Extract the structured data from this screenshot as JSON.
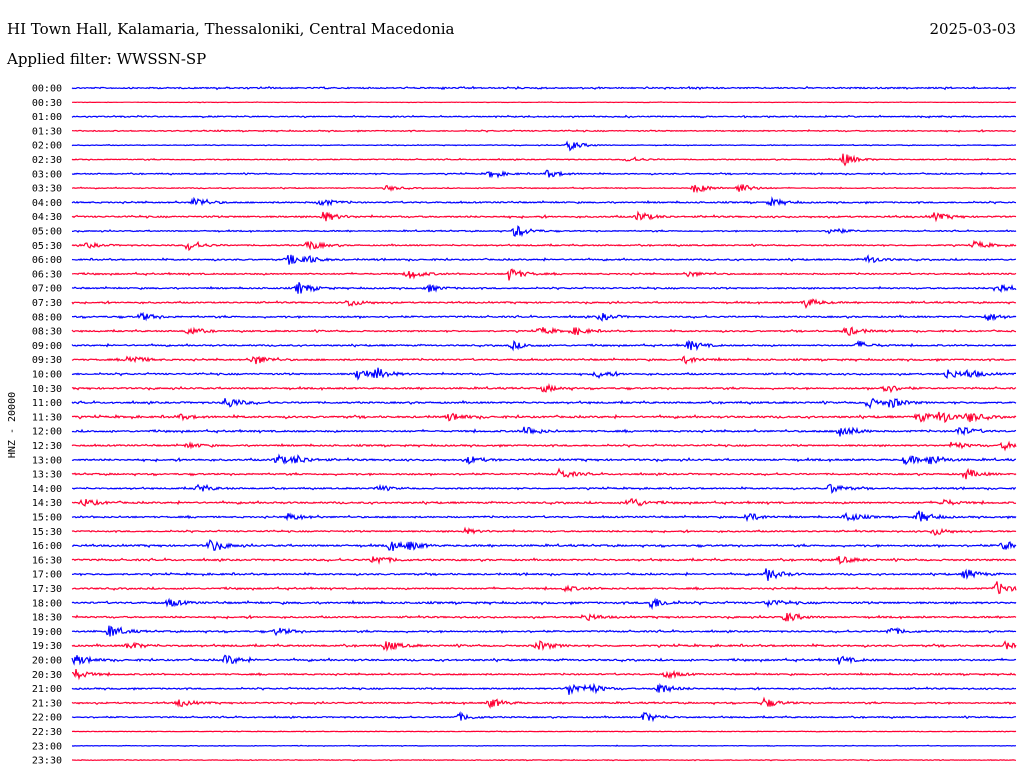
{
  "header": {
    "station": "HI Town Hall, Kalamaria, Thessaloniki, Central Macedonia",
    "date": "2025-03-03",
    "filter": "Applied filter: WWSSN-SP"
  },
  "chart_data": {
    "type": "line",
    "subtype": "helicorder",
    "channel_label": "HNZ - 20000",
    "minutes_per_row": 30,
    "colors": [
      "#0000ff",
      "#ff0033"
    ],
    "rows": [
      {
        "label": "00:00",
        "noise": 1.0,
        "events": []
      },
      {
        "label": "00:30",
        "noise": 0.3,
        "events": []
      },
      {
        "label": "01:00",
        "noise": 0.8,
        "events": []
      },
      {
        "label": "01:30",
        "noise": 0.8,
        "events": []
      },
      {
        "label": "02:00",
        "noise": 0.5,
        "events": [
          [
            15.8,
            4
          ]
        ]
      },
      {
        "label": "02:30",
        "noise": 0.7,
        "events": [
          [
            17.7,
            2
          ],
          [
            24.5,
            5
          ]
        ]
      },
      {
        "label": "03:00",
        "noise": 0.8,
        "events": [
          [
            13.3,
            3
          ],
          [
            15.1,
            3
          ]
        ]
      },
      {
        "label": "03:30",
        "noise": 0.6,
        "events": [
          [
            10,
            2
          ],
          [
            19.8,
            4
          ],
          [
            21.2,
            4
          ]
        ]
      },
      {
        "label": "04:00",
        "noise": 1.0,
        "events": [
          [
            3.9,
            4
          ],
          [
            7.9,
            3
          ],
          [
            22.2,
            3
          ]
        ]
      },
      {
        "label": "04:30",
        "noise": 1.1,
        "events": [
          [
            8,
            4
          ],
          [
            18,
            4
          ],
          [
            27.4,
            3
          ]
        ]
      },
      {
        "label": "05:00",
        "noise": 0.8,
        "events": [
          [
            14.1,
            5
          ],
          [
            24.1,
            3
          ]
        ]
      },
      {
        "label": "05:30",
        "noise": 0.9,
        "events": [
          [
            0.5,
            2
          ],
          [
            3.7,
            4
          ],
          [
            7.5,
            4
          ],
          [
            28.7,
            3
          ]
        ]
      },
      {
        "label": "06:00",
        "noise": 1.0,
        "events": [
          [
            6.9,
            4
          ],
          [
            7.4,
            3
          ],
          [
            25.3,
            3
          ]
        ]
      },
      {
        "label": "06:30",
        "noise": 1.0,
        "events": [
          [
            10.7,
            4
          ],
          [
            13.9,
            5
          ],
          [
            19.6,
            2
          ]
        ]
      },
      {
        "label": "07:00",
        "noise": 1.0,
        "events": [
          [
            7.2,
            5
          ],
          [
            11.3,
            3
          ],
          [
            29.4,
            5
          ]
        ]
      },
      {
        "label": "07:30",
        "noise": 1.0,
        "events": [
          [
            8.8,
            3
          ],
          [
            23.3,
            4
          ]
        ]
      },
      {
        "label": "08:00",
        "noise": 1.1,
        "events": [
          [
            2.2,
            3
          ],
          [
            16.8,
            3
          ],
          [
            29.1,
            3
          ]
        ]
      },
      {
        "label": "08:30",
        "noise": 1.0,
        "events": [
          [
            3.7,
            3
          ],
          [
            14.9,
            3
          ],
          [
            16,
            3
          ],
          [
            24.6,
            4
          ]
        ]
      },
      {
        "label": "09:00",
        "noise": 1.0,
        "events": [
          [
            14,
            3
          ],
          [
            19.6,
            4
          ],
          [
            25,
            3
          ]
        ]
      },
      {
        "label": "09:30",
        "noise": 1.1,
        "events": [
          [
            1.8,
            4
          ],
          [
            5.8,
            4
          ],
          [
            19.5,
            3
          ]
        ]
      },
      {
        "label": "10:00",
        "noise": 1.1,
        "events": [
          [
            9.1,
            5
          ],
          [
            9.7,
            4
          ],
          [
            16.7,
            3
          ],
          [
            27.8,
            4
          ],
          [
            28.5,
            3
          ]
        ]
      },
      {
        "label": "10:30",
        "noise": 1.1,
        "events": [
          [
            15,
            3
          ],
          [
            25.8,
            4
          ]
        ]
      },
      {
        "label": "11:00",
        "noise": 1.2,
        "events": [
          [
            4.9,
            5
          ],
          [
            25.3,
            4
          ],
          [
            26,
            4
          ]
        ]
      },
      {
        "label": "11:30",
        "noise": 1.3,
        "events": [
          [
            3.4,
            2
          ],
          [
            12,
            3
          ],
          [
            26.9,
            4
          ],
          [
            27.6,
            5
          ],
          [
            28.5,
            4
          ]
        ]
      },
      {
        "label": "12:00",
        "noise": 1.2,
        "events": [
          [
            14.4,
            4
          ],
          [
            24.4,
            6
          ],
          [
            28.2,
            4
          ]
        ]
      },
      {
        "label": "12:30",
        "noise": 1.1,
        "events": [
          [
            3.7,
            2
          ],
          [
            28,
            3
          ],
          [
            29.6,
            3
          ]
        ]
      },
      {
        "label": "13:00",
        "noise": 1.2,
        "events": [
          [
            6.5,
            4
          ],
          [
            7.1,
            3
          ],
          [
            12.6,
            3
          ],
          [
            26.5,
            4
          ],
          [
            27.3,
            4
          ]
        ]
      },
      {
        "label": "13:30",
        "noise": 1.1,
        "events": [
          [
            15.5,
            4
          ],
          [
            28.4,
            4
          ]
        ]
      },
      {
        "label": "14:00",
        "noise": 1.0,
        "events": [
          [
            4,
            3
          ],
          [
            9.7,
            2
          ],
          [
            24.1,
            4
          ]
        ]
      },
      {
        "label": "14:30",
        "noise": 1.2,
        "events": [
          [
            0.4,
            3
          ],
          [
            17.7,
            5
          ],
          [
            27.6,
            3
          ]
        ]
      },
      {
        "label": "15:00",
        "noise": 1.1,
        "events": [
          [
            6.9,
            3
          ],
          [
            21.4,
            4
          ],
          [
            24.6,
            4
          ],
          [
            26.9,
            5
          ]
        ]
      },
      {
        "label": "15:30",
        "noise": 1.0,
        "events": [
          [
            12.5,
            2
          ],
          [
            27.4,
            3
          ]
        ]
      },
      {
        "label": "16:00",
        "noise": 1.2,
        "events": [
          [
            4.4,
            5
          ],
          [
            10.1,
            4
          ],
          [
            10.7,
            3
          ],
          [
            29.6,
            4
          ]
        ]
      },
      {
        "label": "16:30",
        "noise": 1.2,
        "events": [
          [
            9.6,
            4
          ],
          [
            24.4,
            3
          ]
        ]
      },
      {
        "label": "17:00",
        "noise": 1.1,
        "events": [
          [
            22.1,
            5
          ],
          [
            28.4,
            4
          ]
        ]
      },
      {
        "label": "17:30",
        "noise": 1.1,
        "events": [
          [
            15.7,
            2
          ],
          [
            29.4,
            5
          ]
        ]
      },
      {
        "label": "18:00",
        "noise": 1.3,
        "events": [
          [
            3.1,
            3
          ],
          [
            18.4,
            5
          ],
          [
            22.1,
            3
          ]
        ]
      },
      {
        "label": "18:30",
        "noise": 1.1,
        "events": [
          [
            16.3,
            3
          ],
          [
            22.7,
            4
          ]
        ]
      },
      {
        "label": "19:00",
        "noise": 1.1,
        "events": [
          [
            1.2,
            5
          ],
          [
            6.5,
            3
          ],
          [
            26,
            3
          ]
        ]
      },
      {
        "label": "19:30",
        "noise": 1.2,
        "events": [
          [
            1.8,
            3
          ],
          [
            10,
            4
          ],
          [
            14.8,
            4
          ],
          [
            29.6,
            3
          ]
        ]
      },
      {
        "label": "20:00",
        "noise": 1.2,
        "events": [
          [
            0.1,
            4
          ],
          [
            4.9,
            4
          ],
          [
            24.4,
            3
          ]
        ]
      },
      {
        "label": "20:30",
        "noise": 1.0,
        "events": [
          [
            0.1,
            4
          ],
          [
            18.9,
            3
          ]
        ]
      },
      {
        "label": "21:00",
        "noise": 1.0,
        "events": [
          [
            15.8,
            5
          ],
          [
            16.5,
            3
          ],
          [
            18.6,
            5
          ]
        ]
      },
      {
        "label": "21:30",
        "noise": 1.0,
        "events": [
          [
            3.4,
            3
          ],
          [
            13.3,
            4
          ],
          [
            22,
            4
          ]
        ]
      },
      {
        "label": "22:00",
        "noise": 0.9,
        "events": [
          [
            12.3,
            3
          ],
          [
            18.2,
            4
          ]
        ]
      },
      {
        "label": "22:30",
        "noise": 0.4,
        "events": []
      },
      {
        "label": "23:00",
        "noise": 0.4,
        "events": []
      },
      {
        "label": "23:30",
        "noise": 0.5,
        "events": []
      }
    ]
  }
}
